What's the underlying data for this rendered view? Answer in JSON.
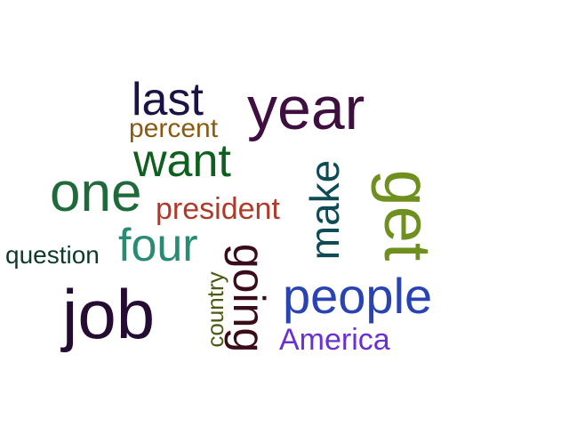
{
  "wordcloud": {
    "words": {
      "year": {
        "text": "year",
        "color": "#3f0f3f"
      },
      "last": {
        "text": "last",
        "color": "#1b1346"
      },
      "percent": {
        "text": "percent",
        "color": "#8a5a10"
      },
      "want": {
        "text": "want",
        "color": "#0f5f1f"
      },
      "one": {
        "text": "one",
        "color": "#1f6a3a"
      },
      "president": {
        "text": "president",
        "color": "#b03a2a"
      },
      "four": {
        "text": "four",
        "color": "#2a8b74"
      },
      "question": {
        "text": "question",
        "color": "#0e3a2a"
      },
      "job": {
        "text": "job",
        "color": "#240c33"
      },
      "people": {
        "text": "people",
        "color": "#2a43b2"
      },
      "america": {
        "text": "America",
        "color": "#6b2fd4"
      },
      "make": {
        "text": "make",
        "color": "#0f4b55"
      },
      "get": {
        "text": "get",
        "color": "#6f8f1e"
      },
      "going": {
        "text": "going",
        "color": "#3a0b18"
      },
      "country": {
        "text": "country",
        "color": "#4b5a12"
      }
    }
  }
}
